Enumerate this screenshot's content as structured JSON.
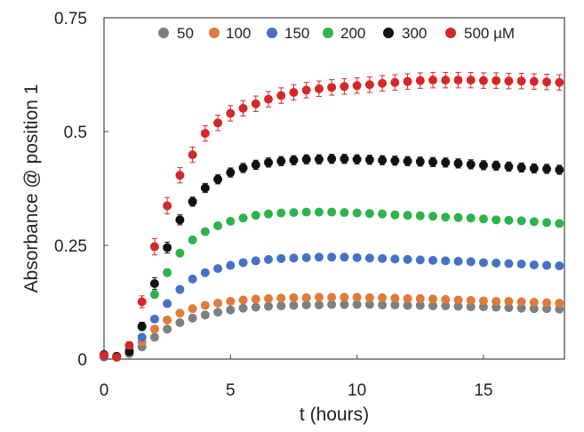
{
  "chart_data": {
    "type": "scatter",
    "title": "",
    "xlabel": "t (hours)",
    "ylabel": "Absorbance @ position 1",
    "xlim": [
      0,
      18.2
    ],
    "ylim": [
      0,
      0.75
    ],
    "x_ticks": [
      0,
      5,
      10,
      15
    ],
    "x_tick_labels": [
      "0",
      "5",
      "10",
      "15"
    ],
    "y_ticks": [
      0,
      0.25,
      0.5,
      0.75
    ],
    "y_tick_labels": [
      "0",
      "0.25",
      "0.5",
      "0.75"
    ],
    "grid": false,
    "legend_position": "top",
    "error_bars": true,
    "x": [
      0,
      0.5,
      1,
      1.5,
      2,
      2.5,
      3,
      3.5,
      4,
      4.5,
      5,
      5.5,
      6,
      6.5,
      7,
      7.5,
      8,
      8.5,
      9,
      9.5,
      10,
      10.5,
      11,
      11.5,
      12,
      12.5,
      13,
      13.5,
      14,
      14.5,
      15,
      15.5,
      16,
      16.5,
      17,
      17.5,
      18
    ],
    "series": [
      {
        "name": "50",
        "color": "#7f7f7f",
        "values": [
          0.005,
          0.005,
          0.012,
          0.027,
          0.048,
          0.066,
          0.08,
          0.09,
          0.097,
          0.103,
          0.108,
          0.112,
          0.114,
          0.116,
          0.117,
          0.118,
          0.119,
          0.119,
          0.12,
          0.12,
          0.12,
          0.12,
          0.119,
          0.119,
          0.118,
          0.118,
          0.117,
          0.117,
          0.116,
          0.115,
          0.115,
          0.114,
          0.113,
          0.112,
          0.111,
          0.111,
          0.11
        ],
        "error": [
          0.003,
          0.003,
          0.003,
          0.003,
          0.004,
          0.004,
          0.004,
          0.004,
          0.004,
          0.004,
          0.004,
          0.004,
          0.004,
          0.004,
          0.004,
          0.004,
          0.004,
          0.004,
          0.004,
          0.004,
          0.004,
          0.004,
          0.004,
          0.004,
          0.004,
          0.004,
          0.004,
          0.004,
          0.004,
          0.004,
          0.004,
          0.004,
          0.004,
          0.004,
          0.004,
          0.004,
          0.004
        ]
      },
      {
        "name": "100",
        "color": "#e07b39",
        "values": [
          0.005,
          0.005,
          0.014,
          0.038,
          0.066,
          0.086,
          0.101,
          0.111,
          0.118,
          0.123,
          0.127,
          0.13,
          0.132,
          0.133,
          0.134,
          0.135,
          0.135,
          0.136,
          0.136,
          0.136,
          0.136,
          0.135,
          0.135,
          0.134,
          0.133,
          0.133,
          0.132,
          0.131,
          0.13,
          0.129,
          0.128,
          0.127,
          0.127,
          0.126,
          0.125,
          0.124,
          0.123
        ],
        "error": [
          0.003,
          0.003,
          0.003,
          0.004,
          0.004,
          0.004,
          0.004,
          0.004,
          0.004,
          0.004,
          0.004,
          0.004,
          0.004,
          0.004,
          0.004,
          0.004,
          0.004,
          0.004,
          0.004,
          0.004,
          0.004,
          0.004,
          0.004,
          0.004,
          0.004,
          0.004,
          0.004,
          0.004,
          0.004,
          0.004,
          0.004,
          0.004,
          0.004,
          0.004,
          0.004,
          0.004,
          0.004
        ]
      },
      {
        "name": "150",
        "color": "#4472c4",
        "values": [
          0.005,
          0.005,
          0.016,
          0.048,
          0.088,
          0.122,
          0.153,
          0.176,
          0.19,
          0.199,
          0.206,
          0.212,
          0.216,
          0.219,
          0.221,
          0.222,
          0.223,
          0.224,
          0.224,
          0.224,
          0.223,
          0.222,
          0.221,
          0.22,
          0.219,
          0.218,
          0.217,
          0.216,
          0.215,
          0.214,
          0.212,
          0.211,
          0.21,
          0.209,
          0.207,
          0.206,
          0.205
        ],
        "error": [
          0.003,
          0.003,
          0.003,
          0.004,
          0.004,
          0.004,
          0.004,
          0.004,
          0.004,
          0.004,
          0.004,
          0.004,
          0.004,
          0.004,
          0.004,
          0.004,
          0.004,
          0.004,
          0.004,
          0.004,
          0.004,
          0.004,
          0.004,
          0.004,
          0.004,
          0.004,
          0.004,
          0.004,
          0.004,
          0.004,
          0.004,
          0.004,
          0.004,
          0.004,
          0.004,
          0.004,
          0.004
        ]
      },
      {
        "name": "200",
        "color": "#2db34a",
        "values": [
          0.008,
          0.006,
          0.02,
          0.07,
          0.142,
          0.19,
          0.233,
          0.262,
          0.28,
          0.293,
          0.303,
          0.31,
          0.316,
          0.319,
          0.321,
          0.322,
          0.323,
          0.323,
          0.323,
          0.322,
          0.321,
          0.32,
          0.319,
          0.317,
          0.316,
          0.315,
          0.314,
          0.312,
          0.311,
          0.31,
          0.308,
          0.306,
          0.305,
          0.304,
          0.302,
          0.3,
          0.298
        ],
        "error": [
          0.004,
          0.004,
          0.004,
          0.006,
          0.008,
          0.008,
          0.007,
          0.007,
          0.007,
          0.007,
          0.007,
          0.007,
          0.007,
          0.007,
          0.007,
          0.007,
          0.007,
          0.007,
          0.007,
          0.007,
          0.007,
          0.007,
          0.007,
          0.007,
          0.007,
          0.007,
          0.007,
          0.007,
          0.007,
          0.007,
          0.007,
          0.007,
          0.007,
          0.007,
          0.007,
          0.007,
          0.007
        ]
      },
      {
        "name": "300",
        "color": "#111111",
        "values": [
          0.01,
          0.006,
          0.016,
          0.072,
          0.166,
          0.245,
          0.306,
          0.346,
          0.376,
          0.395,
          0.41,
          0.42,
          0.427,
          0.432,
          0.435,
          0.437,
          0.439,
          0.439,
          0.44,
          0.44,
          0.439,
          0.438,
          0.437,
          0.436,
          0.435,
          0.434,
          0.433,
          0.432,
          0.43,
          0.428,
          0.426,
          0.425,
          0.423,
          0.421,
          0.419,
          0.418,
          0.416
        ],
        "error": [
          0.005,
          0.005,
          0.006,
          0.009,
          0.013,
          0.012,
          0.011,
          0.01,
          0.01,
          0.01,
          0.01,
          0.01,
          0.01,
          0.01,
          0.01,
          0.01,
          0.01,
          0.01,
          0.01,
          0.01,
          0.01,
          0.01,
          0.01,
          0.01,
          0.01,
          0.01,
          0.01,
          0.01,
          0.01,
          0.01,
          0.01,
          0.01,
          0.01,
          0.01,
          0.01,
          0.01,
          0.01
        ]
      },
      {
        "name": "500 µM",
        "color": "#d62728",
        "values": [
          0.008,
          0.004,
          0.03,
          0.126,
          0.247,
          0.337,
          0.404,
          0.449,
          0.496,
          0.519,
          0.54,
          0.551,
          0.561,
          0.571,
          0.579,
          0.586,
          0.591,
          0.594,
          0.597,
          0.599,
          0.601,
          0.603,
          0.606,
          0.608,
          0.61,
          0.612,
          0.613,
          0.613,
          0.613,
          0.613,
          0.612,
          0.612,
          0.611,
          0.611,
          0.61,
          0.609,
          0.608
        ],
        "error": [
          0.006,
          0.006,
          0.008,
          0.013,
          0.018,
          0.018,
          0.017,
          0.017,
          0.017,
          0.017,
          0.017,
          0.017,
          0.017,
          0.017,
          0.017,
          0.017,
          0.017,
          0.017,
          0.017,
          0.017,
          0.017,
          0.017,
          0.017,
          0.017,
          0.017,
          0.017,
          0.017,
          0.017,
          0.017,
          0.017,
          0.017,
          0.017,
          0.017,
          0.017,
          0.017,
          0.017,
          0.017
        ]
      }
    ]
  }
}
